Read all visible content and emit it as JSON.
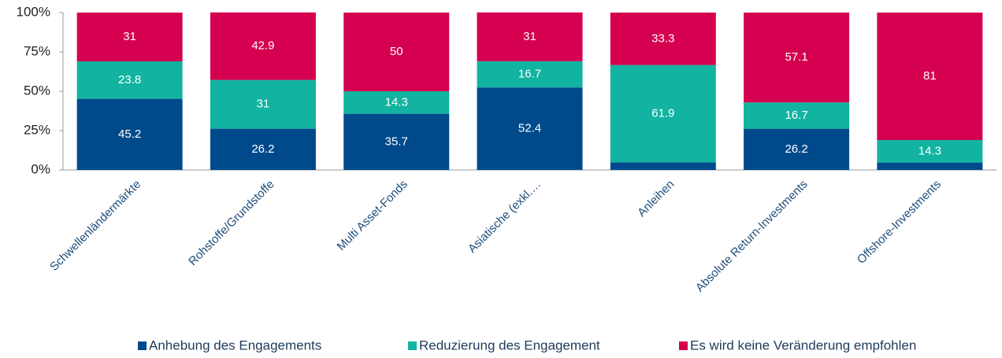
{
  "chart_data": {
    "type": "stacked_bar_percent",
    "categories": [
      "Schwellenländermärkte",
      "Rohstoffe/Grundstoffe",
      "Multi Asset-Fonds",
      "Asiatische (exkl.…",
      "Anleihen",
      "Absolute Return-Investments",
      "Offshore-Investments"
    ],
    "series": [
      {
        "name": "Anhebung des Engagements",
        "color": "#004a8c",
        "values": [
          45.2,
          26.2,
          35.7,
          52.4,
          4.8,
          26.2,
          4.7
        ],
        "value_labels": [
          "45.2",
          "26.2",
          "35.7",
          "52.4",
          null,
          "26.2",
          null
        ]
      },
      {
        "name": "Reduzierung des Engagement",
        "color": "#12b3a0",
        "values": [
          23.8,
          31,
          14.3,
          16.7,
          61.9,
          16.7,
          14.3
        ]
      },
      {
        "name": "Es wird keine Veränderung empfohlen",
        "color": "#d5004f",
        "values": [
          31,
          42.9,
          50,
          31,
          33.3,
          57.1,
          81
        ]
      }
    ],
    "ylim": [
      0,
      100
    ],
    "yticks": [
      {
        "value": 0,
        "label": "0%"
      },
      {
        "value": 25,
        "label": "25%"
      },
      {
        "value": 50,
        "label": "50%"
      },
      {
        "value": 75,
        "label": "75%"
      },
      {
        "value": 100,
        "label": "100%"
      }
    ],
    "grid": false,
    "legend": "bottom"
  }
}
